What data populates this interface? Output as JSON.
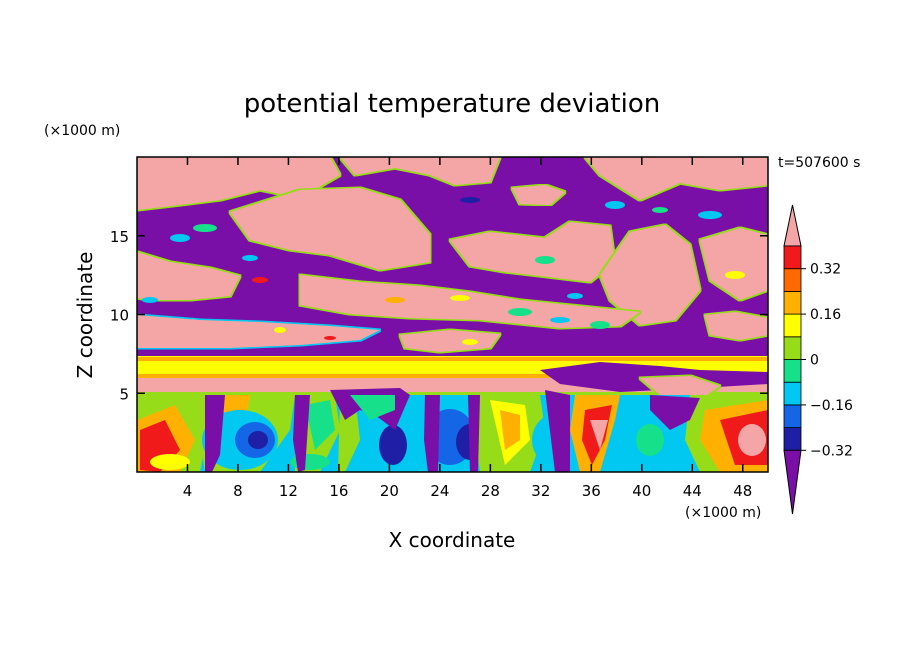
{
  "chart_data": {
    "type": "heatmap",
    "title": "potential temperature deviation",
    "time_label": "t=507600 s",
    "xlabel": "X coordinate",
    "ylabel": "Z coordinate",
    "x_unit": "(×1000 m)",
    "y_unit": "(×1000 m)",
    "xlim": [
      0,
      50
    ],
    "ylim": [
      0,
      20
    ],
    "x_ticks": [
      "4",
      "8",
      "12",
      "16",
      "20",
      "24",
      "28",
      "32",
      "36",
      "40",
      "44",
      "48"
    ],
    "y_ticks": [
      "5",
      "10",
      "15"
    ],
    "colorbar": {
      "labels": [
        "0.32",
        "0.16",
        "0",
        "−0.16",
        "−0.32"
      ],
      "label_values": [
        0.32,
        0.16,
        0,
        -0.16,
        -0.32
      ],
      "level_min": -0.4,
      "level_step": 0.08,
      "colors": [
        "#7a0fa8",
        "#1f1fa6",
        "#1466e6",
        "#00c8f0",
        "#17e08a",
        "#96dc19",
        "#ffff00",
        "#ffb000",
        "#ff6a00",
        "#f01a1a",
        "#f4a5a5"
      ],
      "extend": "both"
    },
    "palette": {
      "pink": "#f4a5a5",
      "purple": "#7a0fa8",
      "yellow": "#ffff00",
      "navy": "#1f1fa6",
      "blue": "#1466e6",
      "cyan": "#00c8f0",
      "green": "#17e08a",
      "lime": "#96dc19",
      "orange": "#ffb000",
      "red": "#f01a1a"
    }
  }
}
